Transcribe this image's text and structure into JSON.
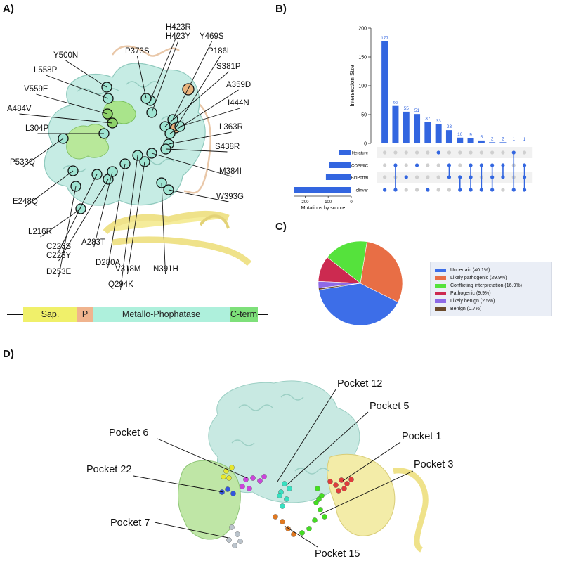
{
  "panels": {
    "a": "A)",
    "b": "B)",
    "c": "C)",
    "d": "D)"
  },
  "panel_a": {
    "mutations": [
      "H423R",
      "H423Y",
      "Y469S",
      "P373S",
      "Y500N",
      "P186L",
      "L558P",
      "S381P",
      "V559E",
      "A359D",
      "I444N",
      "A484V",
      "L304P",
      "L363R",
      "S438R",
      "P533Q",
      "M384I",
      "W393G",
      "E248Q",
      "L216R",
      "C223S",
      "C223Y",
      "A283T",
      "D253E",
      "D280A",
      "V318M",
      "N391H",
      "Q294K"
    ],
    "domains": [
      {
        "label": "Sap.",
        "color": "#f0f06a"
      },
      {
        "label": "P",
        "color": "#f0b48e"
      },
      {
        "label": "Metallo-Phophatase",
        "color": "#aef0dc"
      },
      {
        "label": "C-term",
        "color": "#7ee07a"
      }
    ]
  },
  "chart_data": [
    {
      "type": "bar",
      "panel": "B",
      "ylabel": "Intersection Size",
      "ylim": [
        0,
        200
      ],
      "yticks": [
        "0",
        "50",
        "100",
        "150",
        "200"
      ],
      "values": [
        177,
        65,
        55,
        51,
        37,
        33,
        23,
        10,
        9,
        5,
        2,
        2,
        1,
        1
      ],
      "sets": [
        "literature",
        "COSMIC",
        "cBioPortal",
        "clinvar"
      ],
      "membership": [
        [
          3
        ],
        [
          1,
          3
        ],
        [
          2
        ],
        [
          1
        ],
        [
          3
        ],
        [
          0
        ],
        [
          1,
          2
        ],
        [
          2,
          3
        ],
        [
          1,
          2,
          3
        ],
        [
          1,
          3
        ],
        [
          1,
          2,
          3
        ],
        [
          1,
          2
        ],
        [
          0,
          3
        ],
        [
          1,
          2,
          3
        ]
      ],
      "set_sizes": [
        52,
        95,
        110,
        250
      ],
      "set_size_label": "Mutations by source",
      "set_size_ticks": [
        "200",
        "100",
        "0"
      ],
      "bar_color": "#3366e0"
    },
    {
      "type": "pie",
      "panel": "C",
      "labels": [
        "Uncertain (40.1%)",
        "Likely pathogenic (29.9%)",
        "Conflicting interpretation (16.9%)",
        "Pathogenic (9.9%)",
        "Likely benign (2.5%)",
        "Benign (0.7%)"
      ],
      "values": [
        40.1,
        29.9,
        16.9,
        9.9,
        2.5,
        0.7
      ],
      "colors": [
        "#3d6ee8",
        "#e86e45",
        "#55e23c",
        "#cc2a50",
        "#8e6ae6",
        "#6b4a2a"
      ]
    }
  ],
  "panel_d": {
    "pockets": [
      "Pocket 12",
      "Pocket 5",
      "Pocket 6",
      "Pocket 1",
      "Pocket 22",
      "Pocket 3",
      "Pocket 7",
      "Pocket 15"
    ],
    "colors": [
      "#e03b3b",
      "#38e0c0",
      "#cc44dd",
      "#e6e630",
      "#3355dd",
      "#44dd22",
      "#bbc4cc",
      "#e07820"
    ]
  }
}
